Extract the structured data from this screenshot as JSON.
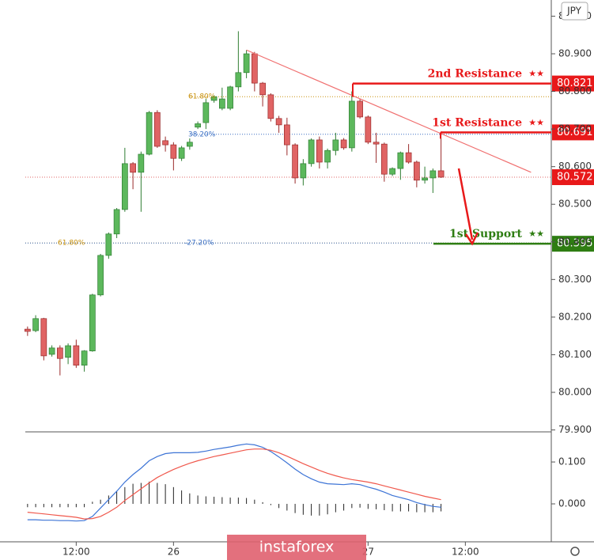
{
  "chart_data": [
    {
      "type": "candlestick",
      "currency": "JPY",
      "open": [
        80.168,
        80.164,
        80.196,
        80.101,
        80.118,
        80.093,
        80.124,
        80.072,
        80.11,
        80.259,
        80.364,
        80.421,
        80.486,
        80.608,
        80.585,
        80.633,
        80.744,
        80.669,
        80.658,
        80.622,
        80.654,
        80.705,
        80.717,
        80.776,
        80.755,
        80.755,
        80.812,
        80.85,
        80.9,
        80.822,
        80.791,
        80.728,
        80.711,
        80.658,
        80.57,
        80.608,
        80.671,
        80.612,
        80.643,
        80.671,
        80.65,
        80.774,
        80.732,
        80.665,
        80.66,
        80.58,
        80.595,
        80.637,
        80.612,
        80.564,
        80.57,
        80.589
      ],
      "high": [
        80.175,
        80.205,
        80.198,
        80.125,
        80.125,
        80.13,
        80.14,
        80.112,
        80.262,
        80.368,
        80.425,
        80.49,
        80.65,
        80.612,
        80.64,
        80.748,
        80.75,
        80.68,
        80.665,
        80.655,
        80.675,
        80.72,
        80.78,
        80.79,
        80.81,
        80.815,
        80.96,
        80.91,
        80.905,
        80.825,
        80.795,
        80.735,
        80.73,
        80.662,
        80.62,
        80.675,
        80.68,
        80.648,
        80.69,
        80.676,
        80.8,
        80.78,
        80.736,
        80.69,
        80.664,
        80.598,
        80.64,
        80.66,
        80.616,
        80.6,
        80.595,
        80.69
      ],
      "low": [
        80.15,
        80.16,
        80.085,
        80.095,
        80.045,
        80.075,
        80.065,
        80.055,
        80.108,
        80.255,
        80.355,
        80.41,
        80.48,
        80.54,
        80.48,
        80.63,
        80.65,
        80.64,
        80.59,
        80.615,
        80.645,
        80.7,
        80.7,
        80.77,
        80.75,
        80.75,
        80.8,
        80.835,
        80.8,
        80.76,
        80.72,
        80.69,
        80.63,
        80.555,
        80.55,
        80.6,
        80.595,
        80.595,
        80.63,
        80.645,
        80.64,
        80.728,
        80.66,
        80.61,
        80.56,
        80.575,
        80.565,
        80.608,
        80.545,
        80.555,
        80.53,
        80.57
      ],
      "close": [
        80.162,
        80.196,
        80.097,
        80.118,
        80.09,
        80.124,
        80.072,
        80.11,
        80.259,
        80.364,
        80.421,
        80.486,
        80.608,
        80.585,
        80.633,
        80.744,
        80.654,
        80.658,
        80.622,
        80.65,
        80.665,
        80.714,
        80.77,
        80.786,
        80.78,
        80.812,
        80.85,
        80.9,
        80.822,
        80.791,
        80.728,
        80.711,
        80.658,
        80.57,
        80.608,
        80.671,
        80.612,
        80.643,
        80.671,
        80.65,
        80.774,
        80.732,
        80.665,
        80.66,
        80.58,
        80.595,
        80.637,
        80.612,
        80.564,
        80.57,
        80.589,
        80.572
      ],
      "up_color": "#5cb85c",
      "down_color": "#e06464",
      "ylim": [
        79.897,
        81.043
      ],
      "yticks": [
        {
          "value": 79.9,
          "label": "79.900"
        },
        {
          "value": 80.0,
          "label": "80.000"
        },
        {
          "value": 80.1,
          "label": "80.100"
        },
        {
          "value": 80.2,
          "label": "80.200"
        },
        {
          "value": 80.3,
          "label": "80.300"
        },
        {
          "value": 80.4,
          "label": "80.400"
        },
        {
          "value": 80.5,
          "label": "80.500"
        },
        {
          "value": 80.6,
          "label": "80.600"
        },
        {
          "value": 80.7,
          "label": "80.700"
        },
        {
          "value": 80.8,
          "label": "80.800"
        },
        {
          "value": 80.9,
          "label": "80.900"
        },
        {
          "value": 81.0,
          "label": "81.000"
        }
      ],
      "xlim": [
        -3.4,
        64.6
      ],
      "xticks": [
        {
          "value": 6,
          "label": "12:00"
        },
        {
          "value": 18,
          "label": "26"
        },
        {
          "value": 42,
          "label": "27"
        },
        {
          "value": 54,
          "label": "12:00"
        }
      ],
      "last_price": 80.572,
      "trendline": {
        "x": [
          27,
          62.1
        ],
        "values": [
          80.91,
          80.585
        ]
      },
      "fib_levels": [
        {
          "label": "61.80%",
          "value": 80.786,
          "color": "#c8900a"
        },
        {
          "label": "38.20%",
          "value": 80.686,
          "color": "#3a6fc4"
        },
        {
          "label": "61.80%",
          "value": 80.397,
          "color": "#c8900a"
        },
        {
          "label": "-27.20%",
          "value": 80.397,
          "color": "#3a6fc4"
        }
      ],
      "levels": [
        {
          "label": "2nd Resistance",
          "stars": "★★",
          "value": 80.821,
          "color": "#e8191a"
        },
        {
          "label": "1st Resistance",
          "stars": "★★",
          "value": 80.691,
          "color": "#e8191a"
        },
        {
          "label": "1st Support",
          "stars": "★★",
          "value": 80.395,
          "color": "#2e7d12"
        }
      ],
      "watermark": "instaforex"
    },
    {
      "type": "line",
      "series": [
        {
          "color": "#3d74d6",
          "values": [
            -0.038,
            -0.038,
            -0.039,
            -0.039,
            -0.04,
            -0.04,
            -0.041,
            -0.04,
            -0.03,
            -0.01,
            0.01,
            0.03,
            0.052,
            0.07,
            0.085,
            0.103,
            0.113,
            0.12,
            0.122,
            0.122,
            0.122,
            0.123,
            0.126,
            0.13,
            0.133,
            0.136,
            0.14,
            0.143,
            0.141,
            0.135,
            0.125,
            0.112,
            0.098,
            0.083,
            0.07,
            0.06,
            0.052,
            0.048,
            0.047,
            0.046,
            0.048,
            0.046,
            0.04,
            0.035,
            0.028,
            0.02,
            0.015,
            0.01,
            0.003,
            -0.002,
            -0.006,
            -0.008
          ]
        },
        {
          "color": "#f0584c",
          "values": [
            -0.02,
            -0.022,
            -0.024,
            -0.026,
            -0.028,
            -0.03,
            -0.032,
            -0.036,
            -0.035,
            -0.03,
            -0.02,
            -0.008,
            0.008,
            0.022,
            0.036,
            0.05,
            0.063,
            0.073,
            0.082,
            0.09,
            0.097,
            0.103,
            0.108,
            0.113,
            0.117,
            0.121,
            0.125,
            0.129,
            0.131,
            0.131,
            0.128,
            0.122,
            0.114,
            0.105,
            0.096,
            0.088,
            0.08,
            0.073,
            0.067,
            0.062,
            0.058,
            0.055,
            0.052,
            0.048,
            0.043,
            0.038,
            0.033,
            0.028,
            0.023,
            0.018,
            0.014,
            0.01
          ]
        }
      ],
      "histogram": {
        "color": "#222222",
        "values": [
          -0.008,
          -0.008,
          -0.008,
          -0.008,
          -0.008,
          -0.008,
          -0.008,
          -0.008,
          0.005,
          0.01,
          0.02,
          0.03,
          0.04,
          0.048,
          0.05,
          0.053,
          0.05,
          0.047,
          0.04,
          0.032,
          0.025,
          0.02,
          0.018,
          0.017,
          0.016,
          0.015,
          0.015,
          0.014,
          0.01,
          0.004,
          -0.003,
          -0.01,
          -0.016,
          -0.022,
          -0.026,
          -0.028,
          -0.028,
          -0.025,
          -0.02,
          -0.016,
          -0.01,
          -0.009,
          -0.012,
          -0.013,
          -0.015,
          -0.018,
          -0.018,
          -0.018,
          -0.02,
          -0.02,
          -0.02,
          -0.018
        ]
      },
      "ylim": [
        -0.0906,
        0.17
      ],
      "yticks": [
        {
          "value": 0,
          "label": "0.000"
        },
        {
          "value": 0.1,
          "label": "0.100"
        }
      ]
    }
  ]
}
